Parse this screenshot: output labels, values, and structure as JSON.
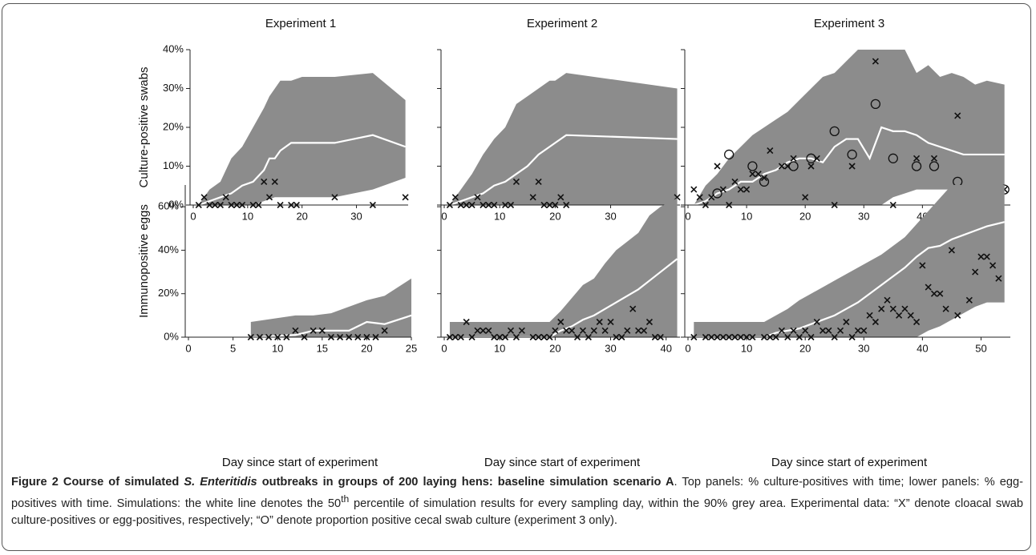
{
  "chart_data": [
    {
      "type": "band-line",
      "title": "Experiment 1",
      "y_label": "Culture-positive swabs",
      "xlim": [
        0,
        39.5
      ],
      "xticks": [
        0,
        10,
        20,
        30
      ],
      "ylim": [
        0,
        40
      ],
      "yticks": [
        {
          "value": 0,
          "label": "0%"
        },
        {
          "value": 10,
          "label": "10%"
        },
        {
          "value": 20,
          "label": "20%"
        },
        {
          "value": 30,
          "label": "30%"
        },
        {
          "value": 40,
          "label": "40%"
        }
      ],
      "band_color": "#8c8c8c",
      "median_color": "#ffffff",
      "band_x": [
        1,
        3,
        5,
        7,
        9,
        11,
        13,
        14,
        15,
        16,
        18,
        20,
        26,
        33,
        39
      ],
      "band_upper": [
        0,
        4,
        6,
        12,
        15,
        20,
        25,
        28,
        30,
        32,
        32,
        33,
        33,
        34,
        27
      ],
      "band_lower": [
        0,
        0,
        0,
        0,
        0,
        0,
        1,
        1.5,
        2,
        2,
        2,
        2,
        2,
        4,
        7
      ],
      "median": [
        0,
        1,
        2,
        3,
        5,
        6,
        9,
        12,
        12,
        14,
        16,
        16,
        16,
        18,
        15
      ],
      "obs_x": [
        1,
        2,
        3,
        4,
        5,
        6,
        7,
        8,
        9,
        11,
        12,
        13,
        14,
        15,
        16,
        18,
        19,
        26,
        33,
        39
      ],
      "obs_y": [
        0,
        2,
        0,
        0,
        0,
        2,
        0,
        0,
        0,
        0,
        0,
        6,
        2,
        6,
        0,
        0,
        0,
        2,
        0,
        2
      ]
    },
    {
      "type": "band-line",
      "title": "Experiment 2",
      "xlim": [
        0,
        42.5
      ],
      "xticks": [
        0,
        10,
        20,
        30,
        40
      ],
      "ylim": [
        0,
        40
      ],
      "yticks": [
        0,
        10,
        20,
        30,
        40
      ],
      "band_color": "#8c8c8c",
      "median_color": "#ffffff",
      "band_x": [
        1,
        3,
        5,
        7,
        9,
        11,
        13,
        15,
        17,
        19,
        20,
        22,
        42
      ],
      "band_upper": [
        0,
        4,
        8,
        13,
        17,
        20,
        26,
        28,
        30,
        32,
        32,
        34,
        30
      ],
      "band_lower": [
        0,
        0,
        0,
        0,
        0,
        0,
        0,
        0,
        0,
        0,
        0,
        0,
        0
      ],
      "median": [
        0,
        1,
        2,
        3,
        5,
        6,
        8,
        10,
        13,
        15,
        16,
        18,
        17
      ],
      "obs_x": [
        1,
        2,
        3,
        4,
        5,
        6,
        7,
        8,
        9,
        11,
        12,
        13,
        16,
        17,
        18,
        19,
        20,
        21,
        22,
        42
      ],
      "obs_y": [
        0,
        2,
        0,
        0,
        0,
        2,
        0,
        0,
        0,
        0,
        0,
        6,
        2,
        6,
        0,
        0,
        0,
        2,
        0,
        2
      ]
    },
    {
      "type": "band-line",
      "title": "Experiment 3",
      "xlim": [
        0,
        55
      ],
      "xticks": [
        0,
        10,
        20,
        30,
        40,
        50
      ],
      "ylim": [
        0,
        40
      ],
      "yticks": [
        0,
        10,
        20,
        30,
        40
      ],
      "band_color": "#8c8c8c",
      "median_color": "#ffffff",
      "band_x": [
        1,
        3,
        5,
        7,
        9,
        11,
        13,
        15,
        17,
        19,
        21,
        23,
        25,
        27,
        29,
        31,
        33,
        35,
        37,
        39,
        41,
        43,
        45,
        47,
        49,
        51,
        54
      ],
      "band_upper": [
        0,
        5,
        8,
        12,
        15,
        18,
        20,
        22,
        24,
        27,
        30,
        33,
        34,
        37,
        40,
        40,
        40,
        40,
        40,
        34,
        36,
        33,
        34,
        33,
        31,
        32,
        31
      ],
      "band_lower": [
        0,
        0,
        0,
        0,
        0,
        0,
        0,
        0,
        0,
        0,
        0,
        0,
        0,
        0,
        0,
        0,
        0,
        2,
        3,
        4,
        4,
        4,
        4,
        4,
        4,
        4,
        4
      ],
      "median": [
        0,
        1,
        3,
        4,
        6,
        6,
        8,
        9,
        11,
        12,
        12,
        11,
        15,
        17,
        17,
        12,
        20,
        19,
        19,
        18,
        16,
        15,
        14,
        13,
        13,
        13,
        13
      ],
      "obs_x": [
        1,
        2,
        3,
        4,
        5,
        6,
        7,
        8,
        9,
        10,
        11,
        12,
        13,
        14,
        16,
        17,
        18,
        20,
        21,
        22,
        25,
        28,
        32,
        35,
        39,
        42,
        46,
        50,
        54
      ],
      "obs_y": [
        4,
        2,
        0,
        2,
        10,
        4,
        0,
        6,
        4,
        4,
        8,
        8,
        7,
        14,
        10,
        10,
        12,
        2,
        10,
        12,
        0,
        10,
        37,
        0,
        12,
        12,
        23,
        2,
        4
      ],
      "cecal_x": [
        5,
        7,
        11,
        13,
        18,
        21,
        25,
        28,
        32,
        35,
        39,
        42,
        46,
        50,
        54
      ],
      "cecal_y": [
        3,
        13,
        10,
        6,
        10,
        12,
        19,
        13,
        26,
        12,
        10,
        10,
        6,
        3,
        4
      ]
    },
    {
      "type": "band-line",
      "y_label": "Immunopositive eggs",
      "x_label": "Day since start of experiment",
      "xlim": [
        0,
        25
      ],
      "xticks": [
        0,
        5,
        10,
        15,
        20,
        25
      ],
      "ylim": [
        0,
        70
      ],
      "yticks": [
        {
          "value": 0,
          "label": "0%"
        },
        {
          "value": 20,
          "label": "20%"
        },
        {
          "value": 40,
          "label": "40%"
        },
        {
          "value": 60,
          "label": "60%"
        }
      ],
      "band_color": "#8c8c8c",
      "median_color": "#ffffff",
      "band_x": [
        7,
        12,
        14,
        16,
        18,
        20,
        22,
        25
      ],
      "band_upper": [
        7,
        10,
        10,
        11,
        14,
        17,
        19,
        27
      ],
      "band_lower": [
        0,
        0,
        0,
        0,
        0,
        0,
        0,
        0
      ],
      "median": [
        0,
        1,
        3,
        3,
        3,
        7,
        6,
        10
      ],
      "obs_x": [
        7,
        8,
        9,
        10,
        11,
        12,
        13,
        14,
        15,
        16,
        17,
        18,
        19,
        20,
        21,
        22
      ],
      "obs_y": [
        0,
        0,
        0,
        0,
        0,
        3,
        0,
        3,
        3,
        0,
        0,
        0,
        0,
        0,
        0,
        3
      ]
    },
    {
      "type": "band-line",
      "x_label": "Day since start of experiment",
      "xlim": [
        0,
        42.5
      ],
      "xticks": [
        0,
        10,
        20,
        30,
        40
      ],
      "ylim": [
        0,
        70
      ],
      "yticks": [
        0,
        20,
        40,
        60
      ],
      "band_color": "#8c8c8c",
      "median_color": "#ffffff",
      "band_x": [
        1,
        19,
        21,
        23,
        25,
        27,
        29,
        31,
        33,
        35,
        37,
        39,
        42
      ],
      "band_upper": [
        7,
        7,
        12,
        18,
        24,
        27,
        34,
        40,
        44,
        48,
        56,
        60,
        64
      ],
      "band_lower": [
        0,
        0,
        0,
        0,
        0,
        0,
        0,
        0,
        0,
        0,
        0,
        0,
        0
      ],
      "median": [
        0,
        0,
        3,
        5,
        8,
        10,
        13,
        16,
        19,
        22,
        26,
        30,
        36
      ],
      "obs_x": [
        1,
        2,
        3,
        4,
        5,
        6,
        7,
        8,
        9,
        10,
        11,
        12,
        13,
        14,
        16,
        17,
        18,
        19,
        20,
        21,
        22,
        23,
        24,
        25,
        26,
        27,
        28,
        29,
        30,
        31,
        32,
        33,
        34,
        35,
        36,
        37,
        38,
        39
      ],
      "obs_y": [
        0,
        0,
        0,
        7,
        0,
        3,
        3,
        3,
        0,
        0,
        0,
        3,
        0,
        3,
        0,
        0,
        0,
        0,
        3,
        7,
        3,
        3,
        0,
        3,
        0,
        3,
        7,
        3,
        7,
        0,
        0,
        3,
        13,
        3,
        3,
        7,
        0,
        0
      ]
    },
    {
      "type": "band-line",
      "x_label": "Day since start of experiment",
      "xlim": [
        0,
        55
      ],
      "xticks": [
        0,
        10,
        20,
        30,
        40,
        50
      ],
      "ylim": [
        0,
        70
      ],
      "yticks": [
        0,
        20,
        40,
        60
      ],
      "band_color": "#8c8c8c",
      "median_color": "#ffffff",
      "band_x": [
        1,
        13,
        15,
        17,
        19,
        21,
        23,
        25,
        27,
        29,
        31,
        33,
        35,
        37,
        39,
        41,
        43,
        45,
        47,
        49,
        51,
        54
      ],
      "band_upper": [
        7,
        7,
        10,
        13,
        17,
        20,
        23,
        26,
        29,
        32,
        35,
        38,
        42,
        46,
        52,
        58,
        64,
        70,
        70,
        70,
        70,
        70
      ],
      "band_lower": [
        0,
        0,
        0,
        0,
        0,
        0,
        0,
        0,
        0,
        0,
        0,
        0,
        0,
        0,
        0,
        3,
        5,
        8,
        11,
        14,
        16,
        16
      ],
      "median": [
        0,
        0,
        2,
        3,
        4,
        6,
        8,
        10,
        13,
        16,
        20,
        24,
        28,
        32,
        37,
        41,
        42,
        45,
        47,
        49,
        51,
        53
      ],
      "obs_x": [
        1,
        3,
        4,
        5,
        6,
        7,
        8,
        9,
        10,
        11,
        13,
        14,
        15,
        16,
        17,
        18,
        19,
        20,
        21,
        22,
        23,
        24,
        25,
        26,
        27,
        28,
        29,
        30,
        31,
        32,
        33,
        34,
        35,
        36,
        37,
        38,
        39,
        40,
        41,
        42,
        43,
        44,
        45,
        46,
        48,
        49,
        50,
        51,
        52,
        53
      ],
      "obs_y": [
        0,
        0,
        0,
        0,
        0,
        0,
        0,
        0,
        0,
        0,
        0,
        0,
        0,
        3,
        0,
        3,
        0,
        3,
        0,
        7,
        3,
        3,
        0,
        3,
        7,
        0,
        3,
        3,
        10,
        7,
        13,
        17,
        13,
        10,
        13,
        10,
        7,
        33,
        23,
        20,
        20,
        13,
        40,
        10,
        17,
        30,
        37,
        37,
        33,
        27
      ]
    }
  ],
  "caption": [
    {
      "text": "Figure 2 Course of simulated ",
      "style": "bold"
    },
    {
      "text": "S. Enteritidis",
      "style": "bold-italic"
    },
    {
      "text": " outbreaks in groups of 200 laying hens: baseline simulation scenario A",
      "style": "bold"
    },
    {
      "text": ". Top panels: % culture-positives with time; lower panels: % egg-positives with time. Simulations: the white line denotes the 50",
      "style": "normal"
    },
    {
      "text": "th",
      "style": "sup"
    },
    {
      "text": " percentile of simulation results for every sampling day, within the 90% grey area. Experimental data: “X” denote cloacal swab culture-positives or egg-positives, respectively; “O” denote proportion positive cecal swab culture (experiment 3 only).",
      "style": "normal"
    }
  ]
}
